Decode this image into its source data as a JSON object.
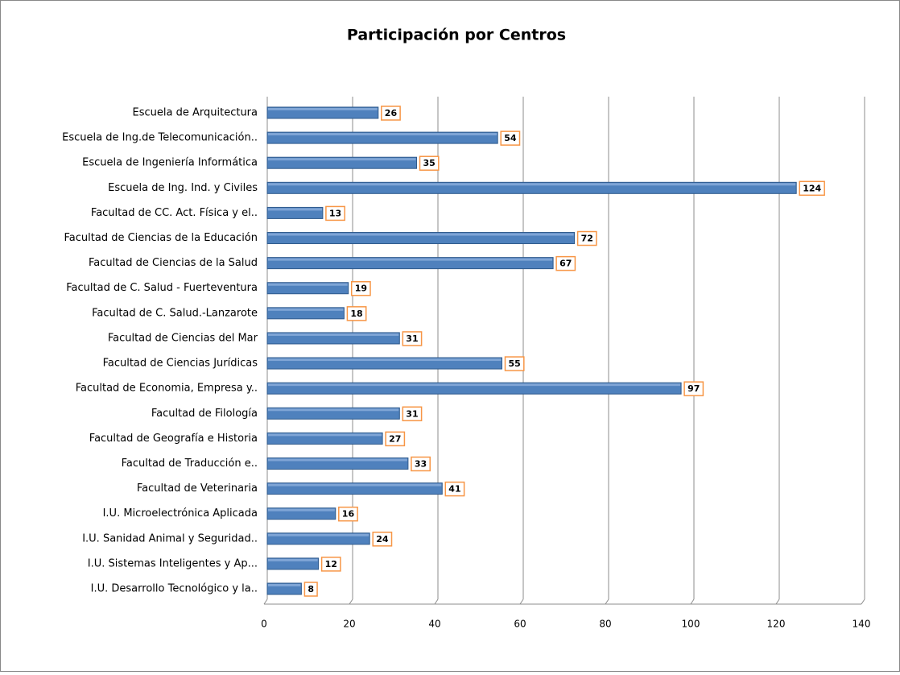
{
  "chart_data": {
    "type": "bar",
    "orientation": "horizontal",
    "title": "Participación por Centros",
    "categories": [
      "Escuela de Arquitectura",
      "Escuela de Ing.de Telecomunicación..",
      "Escuela de Ingeniería Informática",
      "Escuela de Ing. Ind. y Civiles",
      "Facultad  de CC. Act. Física y el..",
      "Facultad de Ciencias de la Educación",
      "Facultad de Ciencias de la Salud",
      "Facultad de C. Salud - Fuerteventura",
      "Facultad de C. Salud.-Lanzarote",
      "Facultad de Ciencias del Mar",
      "Facultad de Ciencias Jurídicas",
      "Facultad de Economia, Empresa y..",
      "Facultad de Filología",
      "Facultad de Geografía e Historia",
      "Facultad de Traducción e..",
      "Facultad de Veterinaria",
      "I.U. Microelectrónica Aplicada",
      "I.U. Sanidad Animal y Seguridad..",
      "I.U. Sistemas Inteligentes y Ap...",
      "I.U. Desarrollo Tecnológico y la.."
    ],
    "values": [
      26,
      54,
      35,
      124,
      13,
      72,
      67,
      19,
      18,
      31,
      55,
      97,
      31,
      27,
      33,
      41,
      16,
      24,
      12,
      8
    ],
    "color": "#4f81bd",
    "label_border_color": "#f79646",
    "xlim": [
      0,
      140
    ],
    "xticks": [
      0,
      20,
      40,
      60,
      80,
      100,
      120,
      140
    ],
    "grid": true
  }
}
